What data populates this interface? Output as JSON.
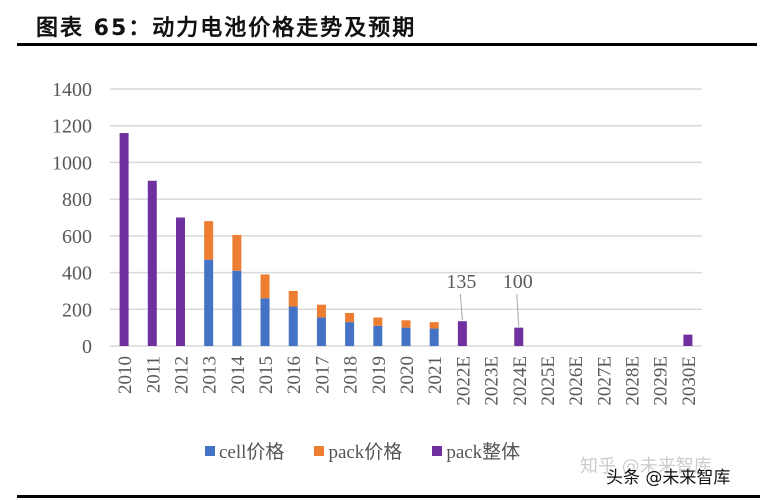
{
  "title": "图表 65：动力电池价格走势及预期",
  "watermarks": [
    "知乎 @未来智库",
    "头条 @未来智库"
  ],
  "colors": {
    "cell": "#4472C4",
    "pack": "#ED7D31",
    "pack_total": "#7030A0",
    "grid": "#D9D9D9",
    "text": "#595959"
  },
  "chart_data": {
    "type": "bar",
    "stacked": true,
    "title": "动力电池价格走势及预期",
    "xlabel": "",
    "ylabel": "",
    "ylim": [
      0,
      1400
    ],
    "yticks": [
      0,
      200,
      400,
      600,
      800,
      1000,
      1200,
      1400
    ],
    "grid": true,
    "legend_position": "bottom",
    "categories": [
      "2010",
      "2011",
      "2012",
      "2013",
      "2014",
      "2015",
      "2016",
      "2017",
      "2018",
      "2019",
      "2020",
      "2021",
      "2022E",
      "2023E",
      "2024E",
      "2025E",
      "2026E",
      "2027E",
      "2028E",
      "2029E",
      "2030E"
    ],
    "series": [
      {
        "name": "cell价格",
        "key": "cell",
        "values": [
          null,
          null,
          null,
          470,
          410,
          260,
          215,
          155,
          130,
          110,
          100,
          95,
          null,
          null,
          null,
          null,
          null,
          null,
          null,
          null,
          null
        ]
      },
      {
        "name": "pack价格",
        "key": "pack",
        "values": [
          null,
          null,
          null,
          210,
          195,
          130,
          85,
          70,
          50,
          45,
          40,
          35,
          null,
          null,
          null,
          null,
          null,
          null,
          null,
          null,
          null
        ]
      },
      {
        "name": "pack整体",
        "key": "pack_total",
        "values": [
          1160,
          900,
          700,
          null,
          null,
          null,
          null,
          null,
          null,
          null,
          null,
          null,
          135,
          null,
          100,
          null,
          null,
          null,
          null,
          null,
          62
        ]
      }
    ],
    "annotations": [
      {
        "category": "2022E",
        "text": "135"
      },
      {
        "category": "2024E",
        "text": "100"
      }
    ]
  }
}
